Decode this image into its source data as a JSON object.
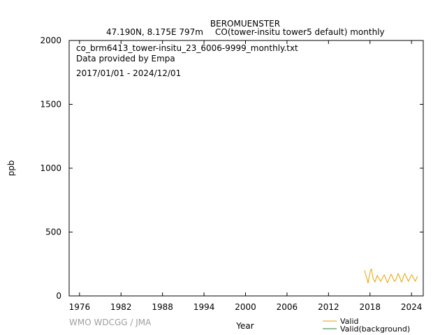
{
  "header": {
    "station": "BEROMUENSTER",
    "location": "47.190N, 8.175E 797m",
    "species": "CO(tower-insitu tower5 default) monthly"
  },
  "annotations": {
    "file": "co_brm6413_tower-insitu_23_6006-9999_monthly.txt",
    "provider": "Data provided by Empa",
    "period": "2017/01/01 - 2024/12/01"
  },
  "credit": "WMO WDCGG / JMA",
  "colors": {
    "valid": "#e8a000",
    "background": "#2e7d32"
  },
  "chart_data": {
    "type": "line",
    "xlabel": "Year",
    "ylabel": "ppb",
    "xlim": [
      1974.5,
      2025.7
    ],
    "ylim": [
      0,
      2000
    ],
    "x_ticks": [
      "1976",
      "1982",
      "1988",
      "1994",
      "2000",
      "2006",
      "2012",
      "2018",
      "2024"
    ],
    "y_ticks": [
      "0",
      "500",
      "1000",
      "1500",
      "2000"
    ],
    "grid": false,
    "legend": "bottom-right",
    "series": [
      {
        "name": "Valid",
        "x": [
          "2017-03",
          "2017-05",
          "2017-07",
          "2017-09",
          "2017-11",
          "2018-01",
          "2018-03",
          "2018-05",
          "2018-07",
          "2018-09",
          "2018-11",
          "2019-01",
          "2019-03",
          "2019-05",
          "2019-07",
          "2019-09",
          "2019-11",
          "2020-01",
          "2020-03",
          "2020-05",
          "2020-07",
          "2020-09",
          "2020-11",
          "2021-01",
          "2021-03",
          "2021-05",
          "2021-07",
          "2021-09",
          "2021-11",
          "2022-01",
          "2022-03",
          "2022-05",
          "2022-07",
          "2022-09",
          "2022-11",
          "2023-01",
          "2023-03",
          "2023-05",
          "2023-07",
          "2023-09",
          "2023-11",
          "2024-01",
          "2024-03",
          "2024-05",
          "2024-07",
          "2024-09",
          "2024-11"
        ],
        "values": [
          200,
          165,
          140,
          100,
          150,
          195,
          210,
          155,
          125,
          110,
          135,
          160,
          145,
          130,
          115,
          130,
          150,
          165,
          150,
          120,
          105,
          125,
          150,
          170,
          155,
          130,
          115,
          125,
          145,
          175,
          160,
          135,
          110,
          125,
          160,
          175,
          155,
          135,
          115,
          130,
          150,
          165,
          150,
          130,
          115,
          135,
          155
        ]
      },
      {
        "name": "Valid(background)",
        "x": [],
        "values": []
      }
    ]
  }
}
